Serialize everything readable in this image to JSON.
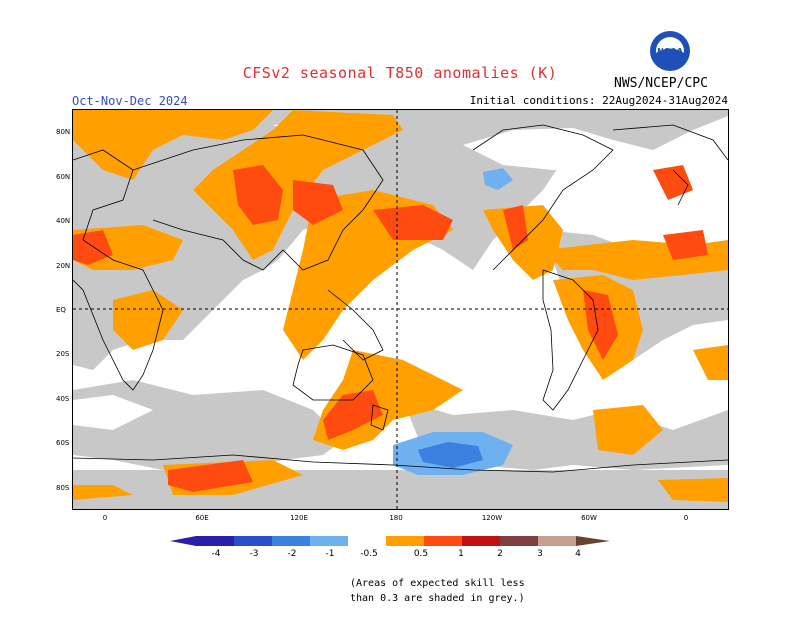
{
  "header": {
    "title": "CFSv2 seasonal T850 anomalies (K)",
    "season": "Oct-Nov-Dec 2024",
    "initial_conditions": "Initial conditions: 22Aug2024-31Aug2024",
    "agency": "NWS/NCEP/CPC",
    "logo_text": "NOAA"
  },
  "axes": {
    "lat_labels": [
      "80N",
      "60N",
      "40N",
      "20N",
      "EQ",
      "20S",
      "40S",
      "60S",
      "80S"
    ],
    "lon_labels": [
      "0",
      "60E",
      "120E",
      "180",
      "120W",
      "60W",
      "0"
    ]
  },
  "colorbar": {
    "labels": [
      "-4",
      "-3",
      "-2",
      "-1",
      "-0.5",
      "0.5",
      "1",
      "2",
      "3",
      "4"
    ],
    "colors": [
      "#2a1fa8",
      "#2850c8",
      "#3c80e0",
      "#6eb0f0",
      "#ffffff",
      "#ffa000",
      "#ff4a10",
      "#c01010",
      "#804040",
      "#c8a090"
    ]
  },
  "legend_note": {
    "line1": "(Areas of expected skill less",
    "line2": "than 0.3 are shaded in grey.)"
  },
  "colors": {
    "skill_grey": "#c8c8c8",
    "anom_05_1": "#ffa000",
    "anom_1_2": "#ff4a10",
    "neg_05_1": "#6eb0f0",
    "neg_1_2": "#3c80e0"
  }
}
